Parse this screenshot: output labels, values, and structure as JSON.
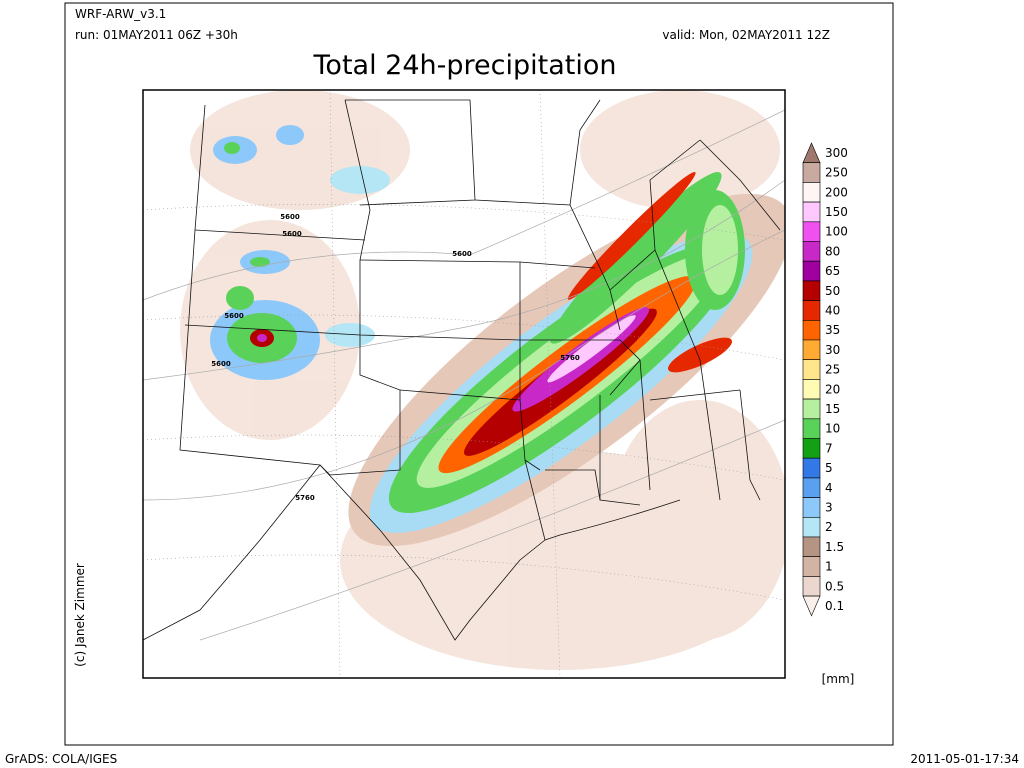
{
  "header": {
    "model": "WRF-ARW_v3.1",
    "run": "run: 01MAY2011 06Z +30h",
    "valid": "valid: Mon, 02MAY2011 12Z",
    "title": "Total 24h-precipitation"
  },
  "map": {
    "contour_labels": [
      "5600",
      "5600",
      "5600",
      "5600",
      "5600",
      "5760",
      "5760"
    ]
  },
  "colorbar": {
    "unit": "[mm]",
    "levels": [
      {
        "label": "300",
        "color": "#a0786e"
      },
      {
        "label": "250",
        "color": "#c8aaa0"
      },
      {
        "label": "200",
        "color": "#fff5f5"
      },
      {
        "label": "150",
        "color": "#ffc8ff"
      },
      {
        "label": "100",
        "color": "#f050f0"
      },
      {
        "label": "80",
        "color": "#c828c8"
      },
      {
        "label": "65",
        "color": "#a000a0"
      },
      {
        "label": "50",
        "color": "#b40000"
      },
      {
        "label": "40",
        "color": "#e62800"
      },
      {
        "label": "35",
        "color": "#ff6400"
      },
      {
        "label": "30",
        "color": "#ffaa32"
      },
      {
        "label": "25",
        "color": "#ffe68c"
      },
      {
        "label": "20",
        "color": "#fffab4"
      },
      {
        "label": "15",
        "color": "#b4f0a0"
      },
      {
        "label": "10",
        "color": "#5ad25a"
      },
      {
        "label": "7",
        "color": "#14a014"
      },
      {
        "label": "5",
        "color": "#3278e6"
      },
      {
        "label": "4",
        "color": "#5aa0f0"
      },
      {
        "label": "3",
        "color": "#8cc8fa"
      },
      {
        "label": "2",
        "color": "#b4e6f5"
      },
      {
        "label": "1.5",
        "color": "#b49482"
      },
      {
        "label": "1",
        "color": "#d2b4a5"
      },
      {
        "label": "0.5",
        "color": "#ebd7cd"
      },
      {
        "label": "0.1",
        "color": "#faf0eb"
      }
    ]
  },
  "footer": {
    "credit": "(c) Janek Zimmer",
    "software": "GrADS: COLA/IGES",
    "timestamp": "2011-05-01-17:34"
  }
}
